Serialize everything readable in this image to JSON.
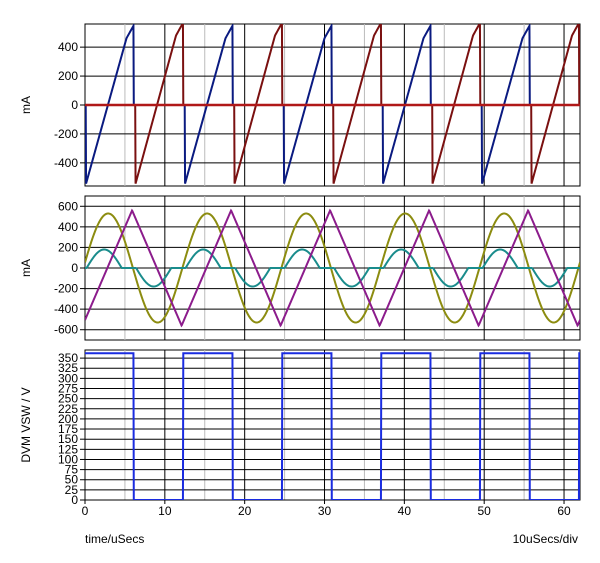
{
  "chart_data": [
    {
      "type": "line",
      "ylabel": "mA",
      "ylim": [
        -560,
        560
      ],
      "xlim": [
        0,
        62
      ],
      "yticks": [
        -400,
        -200,
        0,
        200,
        400
      ],
      "ytick_labels": [
        "-400",
        "-200",
        "0",
        "200",
        "400"
      ],
      "grid": true,
      "series": [
        {
          "color": "#0a1a80",
          "kind": "switch_ramp",
          "period": 12.4,
          "start": 0.1,
          "on": 6.0,
          "peak": 550,
          "vmin": -550
        },
        {
          "color": "#7a1010",
          "kind": "switch_ramp",
          "period": 12.4,
          "start": 6.3,
          "on": 6.0,
          "peak": 570,
          "vmin": -550
        },
        {
          "color": "#b01818",
          "kind": "zero_line"
        }
      ]
    },
    {
      "type": "line",
      "ylabel": "mA",
      "ylim": [
        -700,
        700
      ],
      "xlim": [
        0,
        62
      ],
      "yticks": [
        -600,
        -400,
        -200,
        0,
        200,
        400,
        600
      ],
      "ytick_labels": [
        "-600",
        "-400",
        "-200",
        "0",
        "200",
        "400",
        "600"
      ],
      "grid": true,
      "series": [
        {
          "color": "#8c8c10",
          "kind": "sine",
          "period": 12.4,
          "amp": 530,
          "phase": 2.9
        },
        {
          "color": "#1a8c8c",
          "kind": "tank",
          "period": 12.4,
          "amp": 180
        },
        {
          "color": "#8c1c8c",
          "kind": "triangle",
          "period": 12.4,
          "amp": 560,
          "peak_at": 5.9
        }
      ]
    },
    {
      "type": "line",
      "ylabel": "DVM VSW / V",
      "ylim": [
        0,
        370
      ],
      "xlim": [
        0,
        62
      ],
      "yticks": [
        0,
        25,
        50,
        75,
        100,
        125,
        150,
        175,
        200,
        225,
        250,
        275,
        300,
        325,
        350
      ],
      "ytick_labels": [
        "0",
        "25",
        "50",
        "75",
        "100",
        "125",
        "150",
        "175",
        "200",
        "225",
        "250",
        "275",
        "300",
        "325",
        "350"
      ],
      "xticks": [
        0,
        10,
        20,
        30,
        40,
        50,
        60
      ],
      "xtick_labels": [
        "0",
        "10",
        "20",
        "30",
        "40",
        "50",
        "60"
      ],
      "grid": true,
      "series": [
        {
          "color": "#1a2ce0",
          "kind": "square",
          "period": 12.4,
          "high": 362,
          "low": 0,
          "fall_at": 6.1
        }
      ]
    }
  ],
  "footer": {
    "xlabel": "time/uSecs",
    "scale": "10uSecs/div"
  }
}
